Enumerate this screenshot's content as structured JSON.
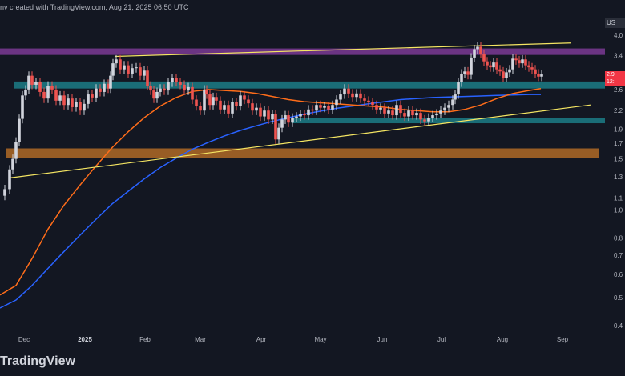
{
  "header": {
    "text": "nv created with TradingView.com, Aug 21, 2025 06:50 UTC"
  },
  "brand": {
    "name": "TradingView"
  },
  "ticker": {
    "label": "US"
  },
  "last_price": {
    "line1": "2.9",
    "line2": "12:"
  },
  "colors": {
    "background": "#131722",
    "up": "#d1d4dc",
    "down": "#ef5350",
    "ma_fast": "#ff6d1a",
    "ma_slow": "#2962ff",
    "trendline": "#f5e663",
    "zone_purple": "#7b3a94",
    "zone_teal": "#1c7c86",
    "zone_brown": "#b06a26"
  },
  "chart_data": {
    "type": "line",
    "scale": "log",
    "grid": false,
    "ylim": [
      0.4,
      4.05
    ],
    "y_ticks": [
      "4.0",
      "3.4",
      "2.9",
      "2.6",
      "2.2",
      "1.9",
      "1.7",
      "1.5",
      "1.3",
      "1.1",
      "1.0",
      "0.8",
      "0.7",
      "0.6",
      "0.5",
      "0.4"
    ],
    "y_tick_values": [
      4.0,
      3.4,
      2.9,
      2.6,
      2.2,
      1.9,
      1.7,
      1.5,
      1.3,
      1.1,
      1.0,
      0.8,
      0.7,
      0.6,
      0.5,
      0.4
    ],
    "x_ticks": [
      {
        "label": "Dec",
        "x": 30,
        "bold": false
      },
      {
        "label": "2025",
        "x": 106,
        "bold": true
      },
      {
        "label": "Feb",
        "x": 181,
        "bold": false
      },
      {
        "label": "Mar",
        "x": 250,
        "bold": false
      },
      {
        "label": "Apr",
        "x": 326,
        "bold": false
      },
      {
        "label": "May",
        "x": 400,
        "bold": false
      },
      {
        "label": "Jun",
        "x": 477,
        "bold": false
      },
      {
        "label": "Jul",
        "x": 551,
        "bold": false
      },
      {
        "label": "Aug",
        "x": 627,
        "bold": false
      },
      {
        "label": "Sep",
        "x": 702,
        "bold": false
      }
    ],
    "x_range": [
      0,
      755
    ],
    "zones": [
      {
        "name": "resistance-zone",
        "from": 3.42,
        "to": 3.6,
        "x": [
          0,
          762
        ],
        "color": "#7b3a94"
      },
      {
        "name": "support-zone-upper",
        "from": 2.62,
        "to": 2.77,
        "x": [
          18,
          762
        ],
        "color": "#1c7c86"
      },
      {
        "name": "support-zone-mid",
        "from": 1.99,
        "to": 2.08,
        "x": [
          365,
          762
        ],
        "color": "#1c7c86"
      },
      {
        "name": "support-zone-lower",
        "from": 1.51,
        "to": 1.63,
        "x": [
          8,
          748
        ],
        "color": "#b06a26"
      }
    ],
    "trendlines": [
      {
        "name": "upper-trendline",
        "points": [
          [
            143,
            3.38
          ],
          [
            712,
            3.76
          ]
        ]
      },
      {
        "name": "lower-trendline",
        "points": [
          [
            12,
            1.29
          ],
          [
            737,
            2.3
          ]
        ]
      }
    ],
    "ma_fast": [
      [
        0,
        0.51
      ],
      [
        20,
        0.55
      ],
      [
        40,
        0.68
      ],
      [
        60,
        0.86
      ],
      [
        80,
        1.04
      ],
      [
        100,
        1.22
      ],
      [
        120,
        1.42
      ],
      [
        140,
        1.64
      ],
      [
        160,
        1.86
      ],
      [
        180,
        2.08
      ],
      [
        200,
        2.28
      ],
      [
        220,
        2.44
      ],
      [
        240,
        2.56
      ],
      [
        260,
        2.6
      ],
      [
        280,
        2.58
      ],
      [
        300,
        2.56
      ],
      [
        320,
        2.52
      ],
      [
        340,
        2.46
      ],
      [
        360,
        2.4
      ],
      [
        380,
        2.36
      ],
      [
        400,
        2.34
      ],
      [
        420,
        2.32
      ],
      [
        440,
        2.3
      ],
      [
        460,
        2.28
      ],
      [
        480,
        2.26
      ],
      [
        500,
        2.22
      ],
      [
        520,
        2.2
      ],
      [
        540,
        2.18
      ],
      [
        560,
        2.18
      ],
      [
        580,
        2.22
      ],
      [
        600,
        2.3
      ],
      [
        620,
        2.42
      ],
      [
        640,
        2.52
      ],
      [
        660,
        2.58
      ],
      [
        675,
        2.62
      ]
    ],
    "ma_slow": [
      [
        0,
        0.46
      ],
      [
        20,
        0.49
      ],
      [
        40,
        0.55
      ],
      [
        60,
        0.63
      ],
      [
        80,
        0.72
      ],
      [
        100,
        0.82
      ],
      [
        120,
        0.93
      ],
      [
        140,
        1.05
      ],
      [
        160,
        1.16
      ],
      [
        180,
        1.28
      ],
      [
        200,
        1.4
      ],
      [
        220,
        1.51
      ],
      [
        240,
        1.62
      ],
      [
        260,
        1.71
      ],
      [
        280,
        1.8
      ],
      [
        300,
        1.88
      ],
      [
        320,
        1.95
      ],
      [
        340,
        2.02
      ],
      [
        360,
        2.08
      ],
      [
        380,
        2.14
      ],
      [
        400,
        2.19
      ],
      [
        420,
        2.24
      ],
      [
        440,
        2.28
      ],
      [
        460,
        2.32
      ],
      [
        480,
        2.36
      ],
      [
        500,
        2.4
      ],
      [
        520,
        2.42
      ],
      [
        540,
        2.44
      ],
      [
        560,
        2.45
      ],
      [
        580,
        2.46
      ],
      [
        600,
        2.47
      ],
      [
        620,
        2.48
      ],
      [
        640,
        2.49
      ],
      [
        660,
        2.5
      ],
      [
        675,
        2.5
      ]
    ],
    "price": [
      [
        0,
        1.12
      ],
      [
        6,
        1.18
      ],
      [
        12,
        1.38
      ],
      [
        16,
        1.5
      ],
      [
        20,
        1.72
      ],
      [
        24,
        2.06
      ],
      [
        28,
        2.48
      ],
      [
        32,
        2.6
      ],
      [
        36,
        2.9
      ],
      [
        40,
        2.7
      ],
      [
        45,
        2.76
      ],
      [
        50,
        2.55
      ],
      [
        55,
        2.42
      ],
      [
        60,
        2.68
      ],
      [
        65,
        2.6
      ],
      [
        70,
        2.38
      ],
      [
        75,
        2.48
      ],
      [
        80,
        2.3
      ],
      [
        85,
        2.42
      ],
      [
        90,
        2.26
      ],
      [
        95,
        2.35
      ],
      [
        100,
        2.2
      ],
      [
        105,
        2.32
      ],
      [
        110,
        2.5
      ],
      [
        115,
        2.44
      ],
      [
        120,
        2.62
      ],
      [
        125,
        2.55
      ],
      [
        130,
        2.72
      ],
      [
        135,
        2.62
      ],
      [
        138,
        2.9
      ],
      [
        141,
        3.2
      ],
      [
        145,
        3.3
      ],
      [
        150,
        3.05
      ],
      [
        155,
        3.15
      ],
      [
        160,
        2.95
      ],
      [
        165,
        3.08
      ],
      [
        170,
        3.1
      ],
      [
        175,
        2.9
      ],
      [
        180,
        3.02
      ],
      [
        184,
        2.68
      ],
      [
        188,
        2.58
      ],
      [
        192,
        2.42
      ],
      [
        196,
        2.55
      ],
      [
        200,
        2.62
      ],
      [
        205,
        2.58
      ],
      [
        210,
        2.75
      ],
      [
        215,
        2.85
      ],
      [
        220,
        2.76
      ],
      [
        225,
        2.7
      ],
      [
        230,
        2.58
      ],
      [
        235,
        2.65
      ],
      [
        240,
        2.4
      ],
      [
        245,
        2.28
      ],
      [
        250,
        2.2
      ],
      [
        255,
        2.6
      ],
      [
        258,
        2.5
      ],
      [
        262,
        2.3
      ],
      [
        266,
        2.45
      ],
      [
        270,
        2.38
      ],
      [
        275,
        2.22
      ],
      [
        280,
        2.3
      ],
      [
        285,
        2.15
      ],
      [
        290,
        2.35
      ],
      [
        295,
        2.28
      ],
      [
        300,
        2.48
      ],
      [
        305,
        2.4
      ],
      [
        310,
        2.33
      ],
      [
        315,
        2.2
      ],
      [
        320,
        2.25
      ],
      [
        325,
        2.1
      ],
      [
        330,
        2.2
      ],
      [
        335,
        2.05
      ],
      [
        340,
        2.14
      ],
      [
        344,
        1.75
      ],
      [
        348,
        1.92
      ],
      [
        352,
        2.05
      ],
      [
        356,
        2.12
      ],
      [
        360,
        2.0
      ],
      [
        365,
        2.08
      ],
      [
        370,
        2.1
      ],
      [
        375,
        2.14
      ],
      [
        380,
        2.12
      ],
      [
        385,
        2.22
      ],
      [
        390,
        2.2
      ],
      [
        395,
        2.3
      ],
      [
        400,
        2.25
      ],
      [
        405,
        2.28
      ],
      [
        410,
        2.22
      ],
      [
        415,
        2.3
      ],
      [
        420,
        2.4
      ],
      [
        425,
        2.5
      ],
      [
        430,
        2.62
      ],
      [
        435,
        2.52
      ],
      [
        440,
        2.45
      ],
      [
        445,
        2.52
      ],
      [
        450,
        2.42
      ],
      [
        455,
        2.38
      ],
      [
        460,
        2.35
      ],
      [
        465,
        2.3
      ],
      [
        470,
        2.22
      ],
      [
        475,
        2.25
      ],
      [
        480,
        2.15
      ],
      [
        485,
        2.2
      ],
      [
        490,
        2.12
      ],
      [
        495,
        2.3
      ],
      [
        500,
        2.16
      ],
      [
        505,
        2.1
      ],
      [
        510,
        2.2
      ],
      [
        515,
        2.12
      ],
      [
        520,
        2.16
      ],
      [
        525,
        2.05
      ],
      [
        530,
        2.02
      ],
      [
        535,
        2.08
      ],
      [
        540,
        2.12
      ],
      [
        545,
        2.15
      ],
      [
        550,
        2.2
      ],
      [
        555,
        2.25
      ],
      [
        560,
        2.3
      ],
      [
        565,
        2.4
      ],
      [
        568,
        2.5
      ],
      [
        572,
        2.75
      ],
      [
        576,
        2.95
      ],
      [
        580,
        3.0
      ],
      [
        584,
        2.92
      ],
      [
        588,
        3.35
      ],
      [
        592,
        3.58
      ],
      [
        596,
        3.65
      ],
      [
        600,
        3.45
      ],
      [
        604,
        3.25
      ],
      [
        608,
        3.15
      ],
      [
        612,
        3.1
      ],
      [
        616,
        3.22
      ],
      [
        620,
        3.05
      ],
      [
        624,
        3.0
      ],
      [
        628,
        2.85
      ],
      [
        632,
        2.98
      ],
      [
        636,
        3.05
      ],
      [
        640,
        3.32
      ],
      [
        644,
        3.28
      ],
      [
        648,
        3.2
      ],
      [
        652,
        3.3
      ],
      [
        656,
        3.15
      ],
      [
        660,
        3.1
      ],
      [
        664,
        3.05
      ],
      [
        668,
        2.95
      ],
      [
        672,
        2.88
      ],
      [
        676,
        2.93
      ]
    ]
  }
}
